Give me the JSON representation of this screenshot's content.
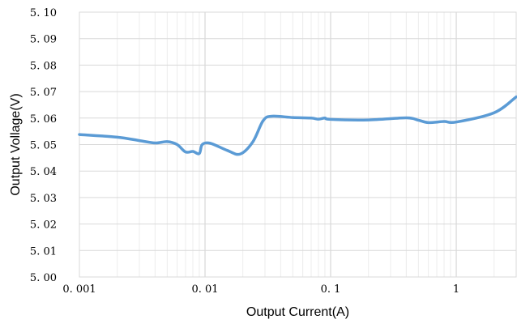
{
  "chart_data": {
    "type": "line",
    "title": "",
    "xlabel": "Output Current(A)",
    "ylabel": "Output Vollage(V)",
    "x_scale": "log",
    "xlim": [
      0.001,
      3
    ],
    "ylim": [
      5.0,
      5.1
    ],
    "grid": true,
    "legend": "none",
    "x_tick_labels": [
      "0. 001",
      "0. 01",
      "0. 1",
      "1"
    ],
    "x_tick_values": [
      0.001,
      0.01,
      0.1,
      1
    ],
    "y_tick_labels": [
      "5. 00",
      "5. 01",
      "5. 02",
      "5. 03",
      "5. 04",
      "5. 05",
      "5. 06",
      "5. 07",
      "5. 08",
      "5. 09",
      "5. 10"
    ],
    "y_tick_values": [
      5.0,
      5.01,
      5.02,
      5.03,
      5.04,
      5.05,
      5.06,
      5.07,
      5.08,
      5.09,
      5.1
    ],
    "series": [
      {
        "color": "#5b9bd5",
        "points": [
          [
            0.001,
            5.0538
          ],
          [
            0.002,
            5.0528
          ],
          [
            0.003,
            5.0515
          ],
          [
            0.004,
            5.0506
          ],
          [
            0.005,
            5.0511
          ],
          [
            0.006,
            5.05
          ],
          [
            0.007,
            5.0472
          ],
          [
            0.008,
            5.0474
          ],
          [
            0.009,
            5.0466
          ],
          [
            0.0095,
            5.05
          ],
          [
            0.011,
            5.0505
          ],
          [
            0.015,
            5.0478
          ],
          [
            0.019,
            5.0464
          ],
          [
            0.024,
            5.051
          ],
          [
            0.029,
            5.059
          ],
          [
            0.034,
            5.0607
          ],
          [
            0.05,
            5.0602
          ],
          [
            0.07,
            5.06
          ],
          [
            0.08,
            5.0596
          ],
          [
            0.09,
            5.06
          ],
          [
            0.1,
            5.0595
          ],
          [
            0.2,
            5.0593
          ],
          [
            0.4,
            5.0601
          ],
          [
            0.5,
            5.0592
          ],
          [
            0.6,
            5.0583
          ],
          [
            0.8,
            5.0587
          ],
          [
            1.0,
            5.0585
          ],
          [
            2.0,
            5.062
          ],
          [
            3.0,
            5.068
          ]
        ]
      }
    ]
  }
}
